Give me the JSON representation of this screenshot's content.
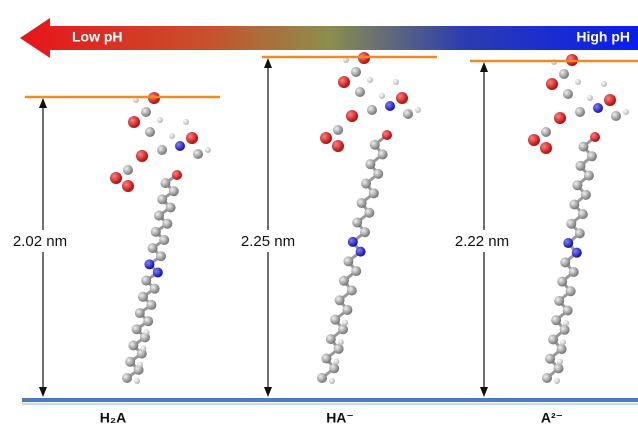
{
  "arrow": {
    "left_label": "Low pH",
    "right_label": "High pH"
  },
  "panels": [
    {
      "distance": "2.02 nm",
      "species": "H₂A"
    },
    {
      "distance": "2.25 nm",
      "species": "HA⁻"
    },
    {
      "distance": "2.22 nm",
      "species": "A²⁻"
    }
  ]
}
